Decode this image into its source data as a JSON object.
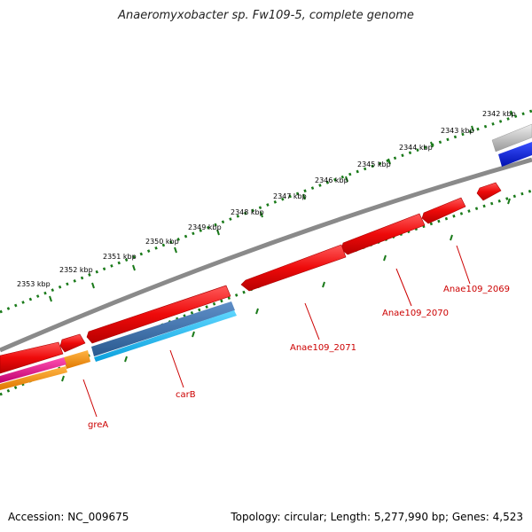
{
  "title": "Anaeromyxobacter sp. Fw109-5, complete genome",
  "footer": {
    "accession": "Accession: NC_009675",
    "summary": "Topology: circular; Length: 5,277,990 bp; Genes: 4,523"
  },
  "ruler_ticks": [
    "2342 kbp",
    "2343 kbp",
    "2344 kbp",
    "2345 kbp",
    "2346 kbp",
    "2347 kbp",
    "2348 kbp",
    "2349 kbp",
    "2350 kbp",
    "2351 kbp",
    "2352 kbp",
    "2353 kbp"
  ],
  "gene_labels": [
    "Anae109_2069",
    "Anae109_2070",
    "Anae109_2071",
    "carB",
    "greA"
  ],
  "colors": {
    "cds": "#ee1111",
    "backbone": "#888888",
    "ticks": "#1a7a1a",
    "label": "#cc0000",
    "blue_track": "#0022dd",
    "steel_track": "#3a6fa8",
    "cyan_track": "#19b8ee",
    "orange_track": "#f59a14",
    "magenta_track": "#e8148c"
  }
}
